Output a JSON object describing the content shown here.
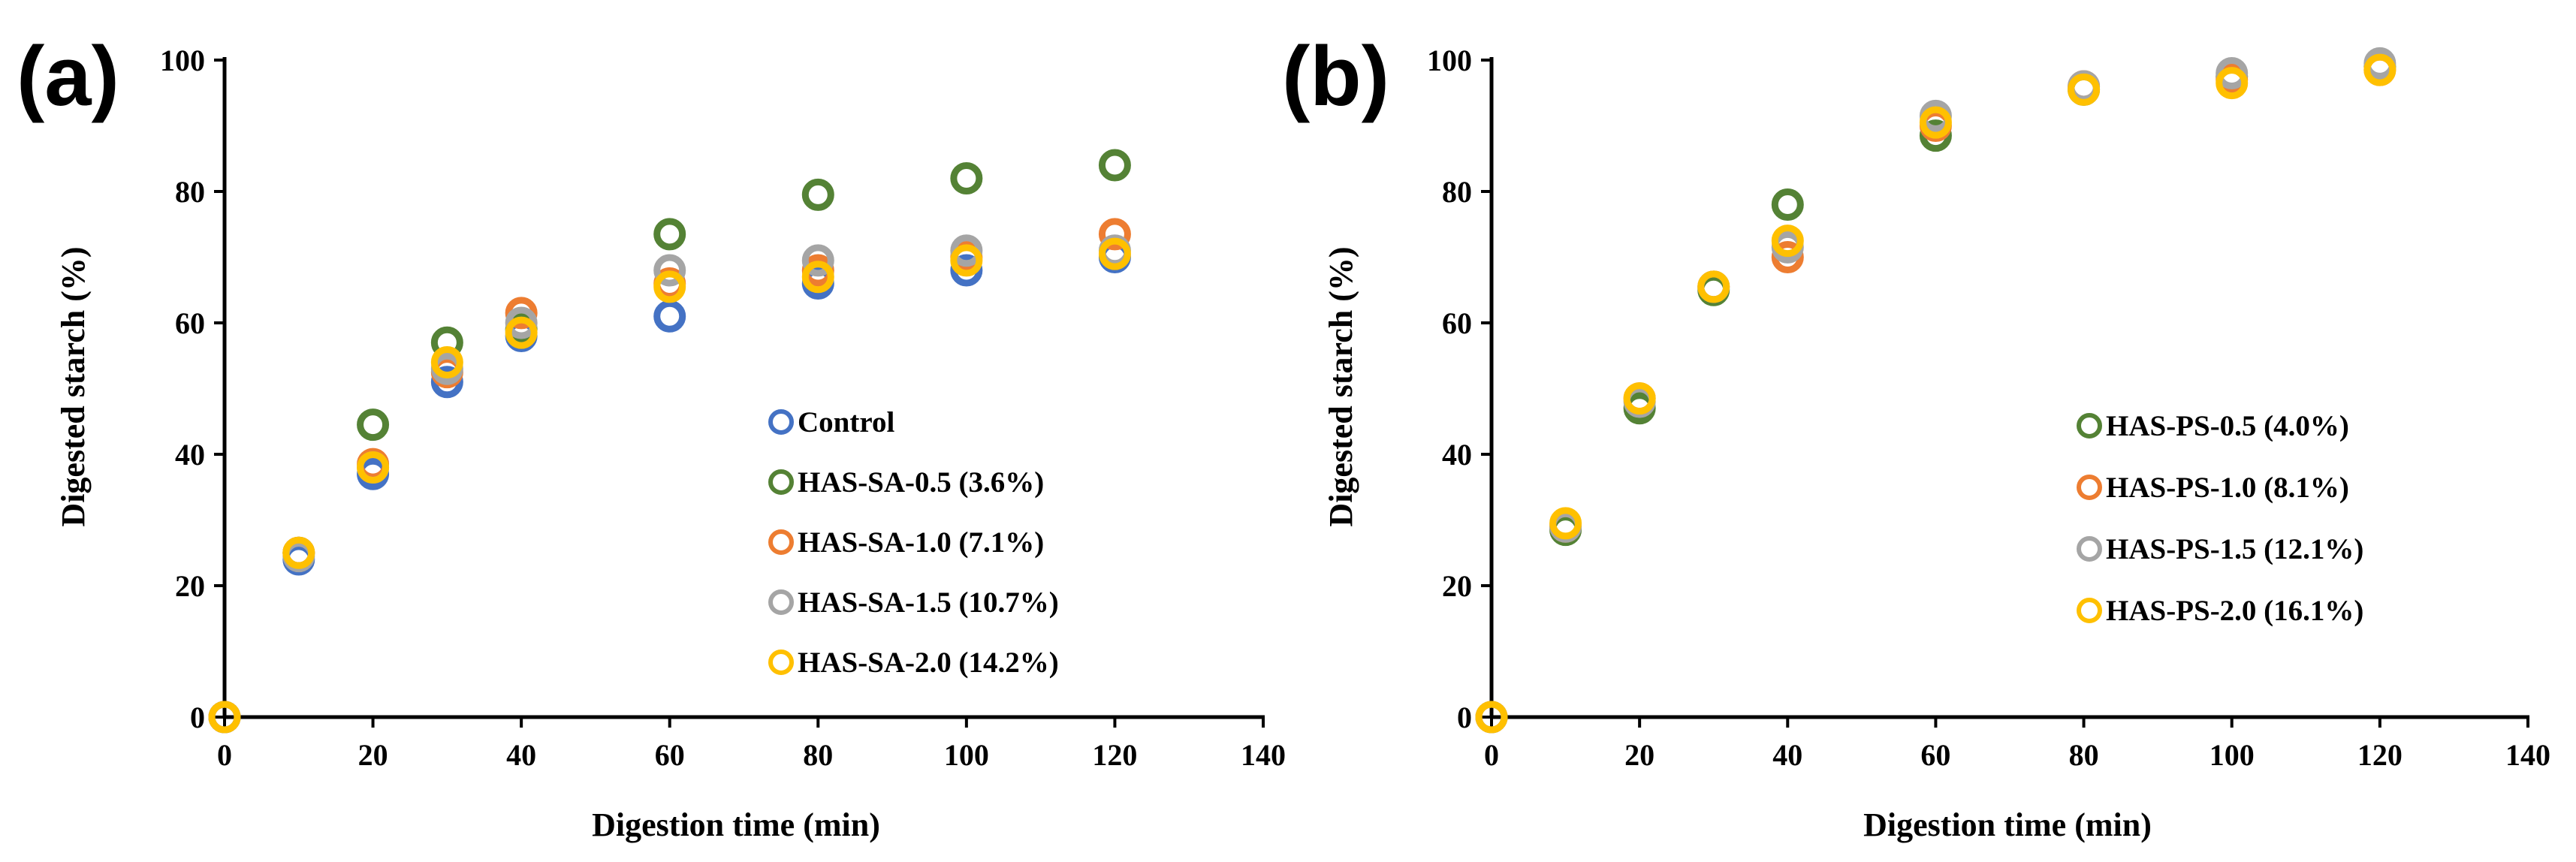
{
  "colors": {
    "control": "#4472C4",
    "s05": "#548235",
    "s10": "#ED7D31",
    "s15": "#A5A5A5",
    "s20": "#FFC000"
  },
  "chart_data": [
    {
      "type": "scatter",
      "panel": "(a)",
      "title": "",
      "xlabel": "Digestion time (min)",
      "ylabel": "Digested starch (%)",
      "xlim": [
        0,
        140
      ],
      "ylim": [
        0,
        100
      ],
      "xticks": [
        0,
        20,
        40,
        60,
        80,
        100,
        120,
        140
      ],
      "yticks": [
        0,
        20,
        40,
        60,
        80,
        100
      ],
      "legend_position": "center-right",
      "series": [
        {
          "name": "Control",
          "color_key": "control",
          "x": [
            0,
            10,
            20,
            30,
            40,
            60,
            80,
            100,
            120
          ],
          "y": [
            0,
            24,
            37,
            51,
            58,
            61,
            66,
            68,
            70
          ]
        },
        {
          "name": "HAS-SA-0.5 (3.6%)",
          "color_key": "s05",
          "x": [
            0,
            10,
            20,
            30,
            40,
            60,
            80,
            100,
            120
          ],
          "y": [
            0,
            25,
            44.5,
            57,
            59,
            73.5,
            79.5,
            82,
            84
          ]
        },
        {
          "name": "HAS-SA-1.0 (7.1%)",
          "color_key": "s10",
          "x": [
            0,
            10,
            20,
            30,
            40,
            60,
            80,
            100,
            120
          ],
          "y": [
            0,
            25,
            38.5,
            52.5,
            61.5,
            66,
            68,
            70,
            73.5
          ]
        },
        {
          "name": "HAS-SA-1.5 (10.7%)",
          "color_key": "s15",
          "x": [
            0,
            10,
            20,
            30,
            40,
            60,
            80,
            100,
            120
          ],
          "y": [
            0,
            24.5,
            38,
            53,
            60,
            68,
            69.5,
            71,
            71
          ]
        },
        {
          "name": "HAS-SA-2.0 (14.2%)",
          "color_key": "s20",
          "x": [
            0,
            10,
            20,
            30,
            40,
            60,
            80,
            100,
            120
          ],
          "y": [
            0,
            25,
            38,
            54,
            58.5,
            65.5,
            67,
            69.5,
            70.5
          ]
        }
      ]
    },
    {
      "type": "scatter",
      "panel": "(b)",
      "title": "",
      "xlabel": "Digestion time (min)",
      "ylabel": "Digested starch (%)",
      "xlim": [
        0,
        140
      ],
      "ylim": [
        0,
        100
      ],
      "xticks": [
        0,
        20,
        40,
        60,
        80,
        100,
        120,
        140
      ],
      "yticks": [
        0,
        20,
        40,
        60,
        80,
        100
      ],
      "legend_position": "center-right",
      "series": [
        {
          "name": "HAS-PS-0.5 (4.0%)",
          "color_key": "s05",
          "x": [
            0,
            10,
            20,
            30,
            40,
            60,
            80,
            100,
            120
          ],
          "y": [
            0,
            28.5,
            47,
            65,
            78,
            88.5,
            95.5,
            97.5,
            99
          ]
        },
        {
          "name": "HAS-PS-1.0 (8.1%)",
          "color_key": "s10",
          "x": [
            0,
            10,
            20,
            30,
            40,
            60,
            80,
            100,
            120
          ],
          "y": [
            0,
            29,
            48.5,
            65.5,
            70,
            90,
            96,
            97,
            98.5
          ]
        },
        {
          "name": "HAS-PS-1.5 (12.1%)",
          "color_key": "s15",
          "x": [
            0,
            10,
            20,
            30,
            40,
            60,
            80,
            100,
            120
          ],
          "y": [
            0,
            29,
            48,
            65.5,
            71.5,
            91.5,
            96,
            98,
            99.5
          ]
        },
        {
          "name": "HAS-PS-2.0 (16.1%)",
          "color_key": "s20",
          "x": [
            0,
            10,
            20,
            30,
            40,
            60,
            80,
            100,
            120
          ],
          "y": [
            0,
            29.5,
            48.5,
            65.5,
            72.5,
            90.5,
            95.5,
            96.5,
            98.5
          ]
        }
      ]
    }
  ]
}
